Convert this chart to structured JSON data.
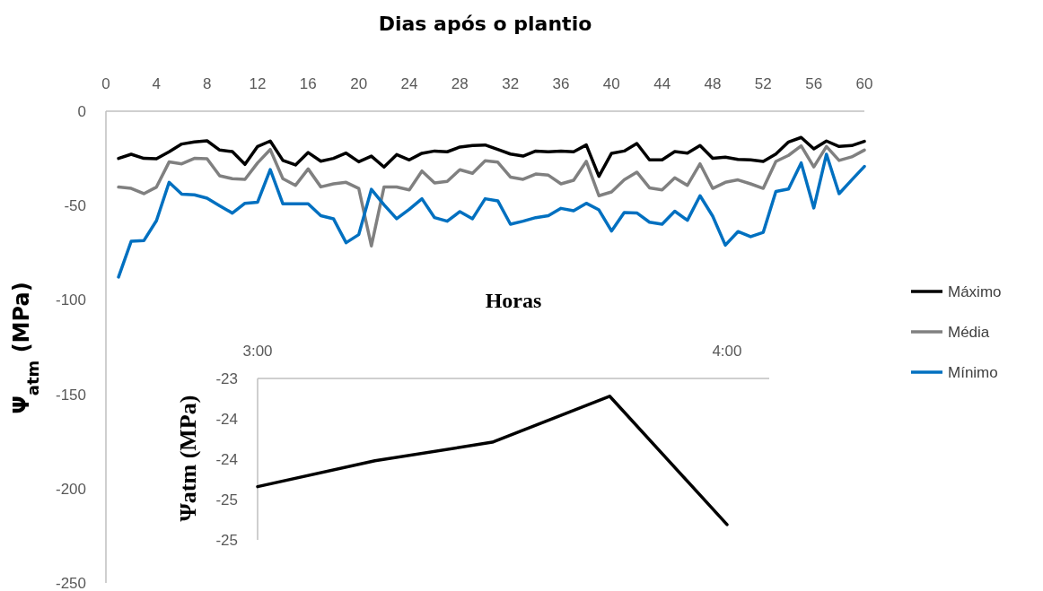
{
  "chart_data": [
    {
      "type": "line",
      "title": "Dias após o plantio",
      "ylabel": "Ψ$_{atm}$ (MPa)",
      "x": [
        1,
        2,
        3,
        4,
        5,
        6,
        7,
        8,
        9,
        10,
        11,
        12,
        13,
        14,
        15,
        16,
        17,
        18,
        19,
        20,
        21,
        22,
        23,
        24,
        25,
        26,
        27,
        28,
        29,
        30,
        31,
        32,
        33,
        34,
        35,
        36,
        37,
        38,
        39,
        40,
        41,
        42,
        43,
        44,
        45,
        46,
        47,
        48,
        49,
        50,
        51,
        52,
        53,
        54,
        55,
        56,
        57,
        58,
        59,
        60
      ],
      "xlim": [
        0,
        60
      ],
      "xticks": [
        0,
        4,
        8,
        12,
        16,
        20,
        24,
        28,
        32,
        36,
        40,
        44,
        48,
        52,
        56,
        60
      ],
      "ylim": [
        -250,
        0
      ],
      "yticks": [
        -250,
        -200,
        -150,
        -100,
        -50,
        0
      ],
      "legend": "right",
      "grid": false,
      "line_style": "solid",
      "series": [
        {
          "name": "Máximo",
          "color": "#000000",
          "values": [
            -25.0,
            -22.8,
            -25.0,
            -25.2,
            -21.5,
            -17.4,
            -16.3,
            -15.7,
            -20.6,
            -21.4,
            -28.2,
            -18.7,
            -15.8,
            -26.1,
            -28.5,
            -21.9,
            -26.5,
            -25.0,
            -22.2,
            -26.8,
            -23.8,
            -29.6,
            -23.0,
            -25.8,
            -22.3,
            -21.1,
            -21.5,
            -19.0,
            -18.2,
            -17.9,
            -20.3,
            -22.7,
            -23.8,
            -21.1,
            -21.5,
            -21.2,
            -21.5,
            -17.9,
            -34.5,
            -22.3,
            -21.1,
            -17.1,
            -25.8,
            -25.8,
            -21.4,
            -22.2,
            -18.2,
            -25.0,
            -24.4,
            -25.5,
            -25.8,
            -26.6,
            -22.7,
            -16.3,
            -13.9,
            -20.0,
            -15.8,
            -18.7,
            -18.2,
            -16.0
          ]
        },
        {
          "name": "Média",
          "color": "#808080",
          "values": [
            -40.2,
            -40.9,
            -43.7,
            -40.2,
            -26.9,
            -27.9,
            -25.0,
            -25.2,
            -34.2,
            -35.8,
            -36.1,
            -27.4,
            -20.3,
            -35.8,
            -39.3,
            -30.6,
            -40.1,
            -38.5,
            -37.7,
            -40.9,
            -71.4,
            -40.2,
            -40.2,
            -41.7,
            -31.7,
            -38.0,
            -37.2,
            -31.0,
            -32.9,
            -26.3,
            -27.0,
            -34.9,
            -36.1,
            -33.3,
            -33.9,
            -38.5,
            -36.6,
            -26.6,
            -44.8,
            -42.8,
            -36.4,
            -32.3,
            -40.6,
            -41.7,
            -35.3,
            -39.3,
            -27.9,
            -40.9,
            -37.7,
            -36.4,
            -38.5,
            -40.9,
            -26.6,
            -23.4,
            -18.4,
            -29.5,
            -18.7,
            -26.1,
            -24.2,
            -20.6
          ]
        },
        {
          "name": "Mínimo",
          "color": "#0070c0",
          "values": [
            -87.9,
            -68.9,
            -68.6,
            -58.0,
            -37.7,
            -44.0,
            -44.3,
            -46.1,
            -50.1,
            -54.0,
            -48.8,
            -48.2,
            -30.9,
            -49.1,
            -49.1,
            -49.1,
            -55.4,
            -57.0,
            -69.7,
            -65.4,
            -41.4,
            -49.6,
            -57.0,
            -52.0,
            -46.4,
            -56.4,
            -58.3,
            -53.2,
            -57.0,
            -46.4,
            -47.5,
            -59.9,
            -58.3,
            -56.4,
            -55.4,
            -51.5,
            -52.8,
            -48.8,
            -52.3,
            -63.5,
            -53.7,
            -53.9,
            -58.8,
            -59.9,
            -53.0,
            -57.8,
            -44.8,
            -55.6,
            -71.0,
            -63.8,
            -66.5,
            -64.2,
            -42.5,
            -41.2,
            -27.4,
            -51.3,
            -22.8,
            -43.7,
            -36.4,
            -29.3
          ]
        }
      ]
    },
    {
      "type": "line",
      "title": "Horas",
      "ylabel": "Ψatm (MPa)",
      "x": [
        3,
        3.25,
        3.5,
        3.75,
        4
      ],
      "xlim": [
        3,
        4.09
      ],
      "xticks": [
        {
          "value": 3,
          "label": "3:00"
        },
        {
          "value": 4,
          "label": "4:00"
        }
      ],
      "ylim": [
        -25,
        -23
      ],
      "yticks": [
        {
          "value": -25,
          "label": "-25"
        },
        {
          "value": -24.5,
          "label": "-25"
        },
        {
          "value": -24,
          "label": "-24"
        },
        {
          "value": -23.5,
          "label": "-24"
        },
        {
          "value": -23,
          "label": "-23"
        }
      ],
      "grid": false,
      "legend": false,
      "line_style": "solid",
      "series": [
        {
          "color": "#000000",
          "values": [
            -24.34,
            -24.02,
            -23.79,
            -23.22,
            -24.81
          ]
        }
      ]
    }
  ]
}
